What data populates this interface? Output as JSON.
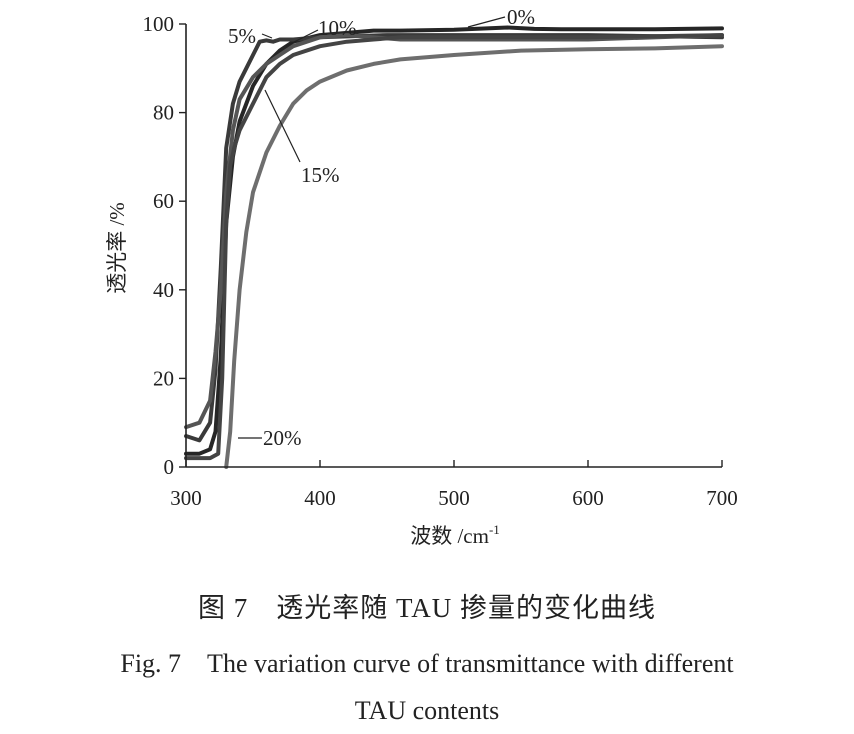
{
  "chart_data": {
    "type": "line",
    "xlabel": "波数 /cm",
    "xlabel_sup": "-1",
    "ylabel": "透光率 /%",
    "xlim": [
      300,
      700
    ],
    "ylim": [
      0,
      100
    ],
    "x_ticks": [
      "300",
      "400",
      "500",
      "600",
      "700"
    ],
    "y_ticks": [
      "0",
      "20",
      "40",
      "60",
      "80",
      "100"
    ],
    "grid": false,
    "series": [
      {
        "name": "0%",
        "color": "#262626",
        "x": [
          300,
          310,
          318,
          322,
          326,
          330,
          335,
          340,
          350,
          360,
          370,
          380,
          400,
          420,
          440,
          460,
          500,
          540,
          560,
          580,
          600,
          650,
          700
        ],
        "y": [
          3,
          3,
          4,
          8,
          25,
          55,
          70,
          78,
          86,
          91,
          94,
          96,
          97.5,
          98,
          98.5,
          98.5,
          98.7,
          99.2,
          98.9,
          98.8,
          98.8,
          98.8,
          99
        ]
      },
      {
        "name": "5%",
        "color": "#3a3a3a",
        "x": [
          300,
          310,
          318,
          322,
          326,
          330,
          335,
          340,
          345,
          350,
          355,
          360,
          365,
          370,
          380,
          400,
          450,
          500,
          600,
          700
        ],
        "y": [
          7,
          6,
          10,
          22,
          45,
          72,
          82,
          87,
          90,
          93,
          96,
          96.3,
          96,
          96.5,
          96.5,
          97,
          97.5,
          97.5,
          97.5,
          97
        ]
      },
      {
        "name": "10%",
        "color": "#555555",
        "x": [
          300,
          310,
          318,
          322,
          326,
          330,
          335,
          340,
          350,
          360,
          370,
          380,
          400,
          420,
          440,
          460,
          500,
          600,
          700
        ],
        "y": [
          9,
          10,
          15,
          26,
          40,
          62,
          76,
          83,
          88,
          91,
          93,
          95,
          97,
          97.5,
          97,
          96.5,
          96.5,
          96.5,
          97.5
        ]
      },
      {
        "name": "15%",
        "color": "#444444",
        "x": [
          300,
          318,
          324,
          327,
          330,
          333,
          336,
          340,
          350,
          360,
          370,
          380,
          400,
          420,
          440,
          460,
          500,
          600,
          700
        ],
        "y": [
          2,
          2,
          3,
          20,
          55,
          68,
          72,
          76,
          82,
          88,
          91,
          93,
          95,
          96,
          96.5,
          97,
          97,
          97,
          97.5
        ]
      },
      {
        "name": "20%",
        "color": "#6e6e6e",
        "x": [
          330,
          333,
          336,
          340,
          345,
          350,
          360,
          370,
          380,
          390,
          400,
          420,
          440,
          460,
          500,
          550,
          600,
          650,
          700
        ],
        "y": [
          0,
          8,
          24,
          40,
          53,
          62,
          71,
          77,
          82,
          85,
          87,
          89.5,
          91,
          92,
          93,
          94,
          94.3,
          94.5,
          95
        ]
      }
    ],
    "annotations": [
      "0%",
      "5%",
      "10%",
      "15%",
      "20%"
    ]
  },
  "caption": {
    "cn": "图 7　透光率随 TAU 掺量的变化曲线",
    "en_line1": "Fig. 7　The variation curve of transmittance with different",
    "en_line2": "TAU contents"
  }
}
